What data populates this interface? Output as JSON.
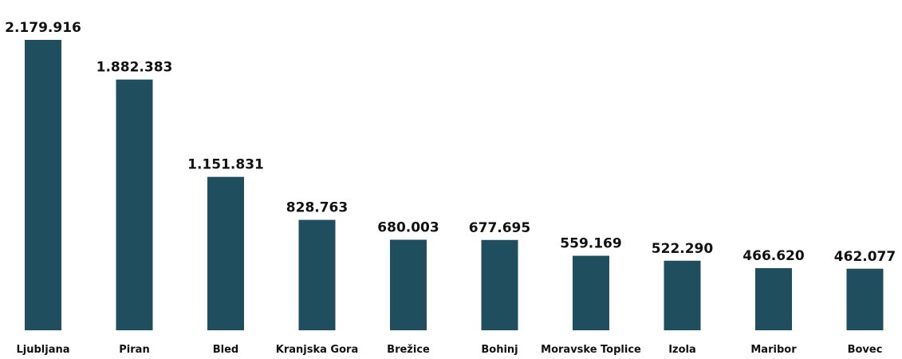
{
  "chart_data": {
    "type": "bar",
    "categories": [
      "Ljubljana",
      "Piran",
      "Bled",
      "Kranjska Gora",
      "Brežice",
      "Bohinj",
      "Moravske Toplice",
      "Izola",
      "Maribor",
      "Bovec"
    ],
    "values": [
      2179916,
      1882383,
      1151831,
      828763,
      680003,
      677695,
      559169,
      522290,
      466620,
      462077
    ],
    "value_labels": [
      "2.179.916",
      "1.882.383",
      "1.151.831",
      "828.763",
      "680.003",
      "677.695",
      "559.169",
      "522.290",
      "466.620",
      "462.077"
    ],
    "bar_color": "#1f4e5e",
    "grid": false,
    "legend": "none"
  }
}
